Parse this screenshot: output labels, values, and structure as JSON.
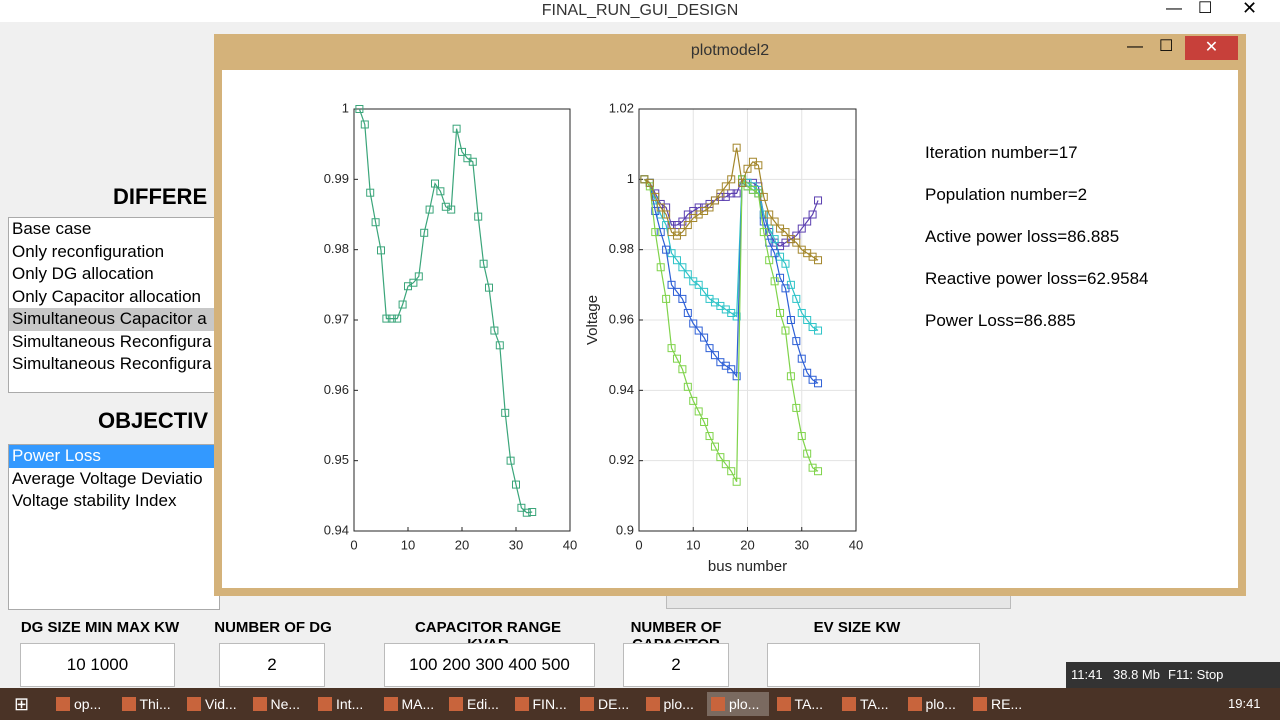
{
  "main_window": {
    "title": "FINAL_RUN_GUI_DESIGN",
    "heading_method": "DIFFERE",
    "method_list": [
      "Base case",
      "Only reconfiguration",
      "Only DG allocation",
      "Only Capacitor allocation",
      "Simultaneous Capacitor a",
      "Simultaneous Reconfigura",
      "Simultaneous Reconfigura"
    ],
    "heading_objective": "OBJECTIV",
    "objective_list": [
      "Power Loss",
      "Average Voltage Deviatio",
      "Voltage stability Index"
    ],
    "fields": [
      {
        "label": "DG SIZE MIN MAX KW",
        "value": "10  1000"
      },
      {
        "label": "NUMBER OF DG",
        "value": "2"
      },
      {
        "label": "CAPACITOR RANGE",
        "sublabel": "KVAR",
        "value": "100  200  300  400  500"
      },
      {
        "label": "NUMBER OF",
        "sublabel": "CAPACITOR",
        "value": "2"
      },
      {
        "label": "EV SIZE KW"
      }
    ]
  },
  "plot_window": {
    "title": "plotmodel2",
    "info": [
      "Iteration number=17",
      "Population number=2",
      "Active power loss=86.885",
      "Reactive power loss=62.9584",
      "Power Loss=86.885"
    ],
    "charts": [
      {
        "type": "line",
        "grid": false,
        "x": [
          1,
          2,
          3,
          4,
          5,
          6,
          7,
          8,
          9,
          10,
          11,
          12,
          13,
          14,
          15,
          16,
          17,
          18,
          19,
          20,
          21,
          22,
          23,
          24,
          25,
          26,
          27,
          28,
          29,
          30,
          31,
          32,
          33
        ],
        "series": [
          {
            "color": "#3aa57a",
            "values": [
              1.0,
              0.9978,
              0.9881,
              0.9839,
              0.9799,
              0.9702,
              0.9702,
              0.9702,
              0.9722,
              0.9748,
              0.9753,
              0.9762,
              0.9824,
              0.9857,
              0.9894,
              0.9883,
              0.9861,
              0.9857,
              0.9972,
              0.9939,
              0.993,
              0.9925,
              0.9847,
              0.978,
              0.9746,
              0.9685,
              0.9664,
              0.9568,
              0.95,
              0.9466,
              0.9433,
              0.9426,
              0.9427
            ]
          }
        ],
        "xlim": [
          0,
          40
        ],
        "xticks": [
          0,
          10,
          20,
          30,
          40
        ],
        "ylim": [
          0.94,
          1
        ],
        "yticks": [
          0.94,
          0.95,
          0.96,
          0.97,
          0.98,
          0.99,
          1
        ]
      },
      {
        "type": "line",
        "grid": true,
        "xlabel": "bus number",
        "ylabel": "Voltage",
        "x": [
          1,
          2,
          3,
          4,
          5,
          6,
          7,
          8,
          9,
          10,
          11,
          12,
          13,
          14,
          15,
          16,
          17,
          18,
          19,
          20,
          21,
          22,
          23,
          24,
          25,
          26,
          27,
          28,
          29,
          30,
          31,
          32,
          33
        ],
        "series": [
          {
            "color": "#5b3fb0",
            "values": [
              1.0,
              0.999,
              0.996,
              0.993,
              0.992,
              0.987,
              0.987,
              0.988,
              0.99,
              0.991,
              0.992,
              0.992,
              0.993,
              0.994,
              0.995,
              0.995,
              0.996,
              0.996,
              1.0,
              0.999,
              0.999,
              0.998,
              0.99,
              0.985,
              0.982,
              0.981,
              0.982,
              0.983,
              0.984,
              0.986,
              0.988,
              0.99,
              0.994
            ]
          },
          {
            "color": "#2ec4c8",
            "values": [
              1.0,
              0.999,
              0.994,
              0.99,
              0.987,
              0.979,
              0.977,
              0.975,
              0.973,
              0.971,
              0.97,
              0.968,
              0.966,
              0.965,
              0.964,
              0.963,
              0.962,
              0.961,
              1.0,
              0.999,
              0.998,
              0.997,
              0.99,
              0.986,
              0.983,
              0.978,
              0.976,
              0.97,
              0.966,
              0.962,
              0.96,
              0.958,
              0.957
            ]
          },
          {
            "color": "#2d5fd6",
            "values": [
              1.0,
              0.999,
              0.991,
              0.985,
              0.98,
              0.97,
              0.968,
              0.966,
              0.962,
              0.959,
              0.957,
              0.955,
              0.952,
              0.95,
              0.948,
              0.947,
              0.946,
              0.944,
              0.999,
              0.998,
              0.997,
              0.996,
              0.988,
              0.982,
              0.979,
              0.972,
              0.969,
              0.96,
              0.954,
              0.949,
              0.945,
              0.943,
              0.942
            ]
          },
          {
            "color": "#7fd34a",
            "values": [
              1.0,
              0.998,
              0.985,
              0.975,
              0.966,
              0.952,
              0.949,
              0.946,
              0.941,
              0.937,
              0.934,
              0.931,
              0.927,
              0.924,
              0.921,
              0.919,
              0.917,
              0.914,
              1.0,
              0.998,
              0.997,
              0.996,
              0.985,
              0.977,
              0.971,
              0.962,
              0.957,
              0.944,
              0.935,
              0.927,
              0.922,
              0.918,
              0.917
            ]
          },
          {
            "color": "#a3862a",
            "values": [
              1.0,
              0.999,
              0.995,
              0.992,
              0.99,
              0.985,
              0.984,
              0.985,
              0.987,
              0.989,
              0.99,
              0.991,
              0.992,
              0.994,
              0.996,
              0.998,
              1.0,
              1.009,
              0.999,
              1.003,
              1.005,
              1.004,
              0.995,
              0.99,
              0.988,
              0.986,
              0.985,
              0.983,
              0.982,
              0.98,
              0.979,
              0.978,
              0.977
            ]
          }
        ],
        "xlim": [
          0,
          40
        ],
        "xticks": [
          0,
          10,
          20,
          30,
          40
        ],
        "ylim": [
          0.9,
          1.02
        ],
        "yticks": [
          0.9,
          0.92,
          0.94,
          0.96,
          0.98,
          1,
          1.02
        ]
      }
    ]
  },
  "status": {
    "time": "11:41",
    "memory": "38.8 Mb",
    "hint": "F11: Stop"
  },
  "taskbar": {
    "items": [
      "op...",
      "Thi...",
      "Vid...",
      "Ne...",
      "Int...",
      "MA...",
      "Edi...",
      "FIN...",
      "DE...",
      "plo...",
      "plo...",
      "TA...",
      "TA...",
      "plo...",
      "RE..."
    ],
    "clock": "19:41"
  }
}
